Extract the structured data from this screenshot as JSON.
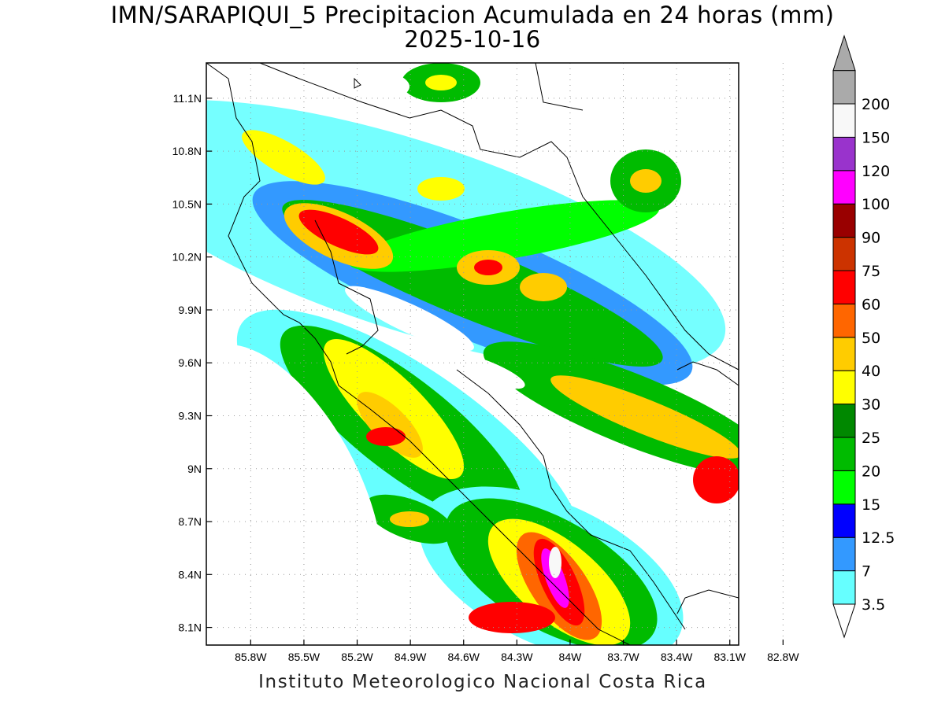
{
  "header": {
    "title": "IMN/SARAPIQUI_5 Precipitacion Acumulada en 24 horas (mm)",
    "date": "2025-10-16"
  },
  "footer": {
    "credit": "Instituto Meteorologico Nacional Costa Rica"
  },
  "map": {
    "lon_range": [
      -86.05,
      -83.05
    ],
    "lat_range": [
      8.0,
      11.3
    ],
    "lat_ticks": [
      {
        "value": 11.1,
        "label": "11.1N"
      },
      {
        "value": 10.8,
        "label": "10.8N"
      },
      {
        "value": 10.5,
        "label": "10.5N"
      },
      {
        "value": 10.2,
        "label": "10.2N"
      },
      {
        "value": 9.9,
        "label": "9.9N"
      },
      {
        "value": 9.6,
        "label": "9.6N"
      },
      {
        "value": 9.3,
        "label": "9.3N"
      },
      {
        "value": 9.0,
        "label": "9N"
      },
      {
        "value": 8.7,
        "label": "8.7N"
      },
      {
        "value": 8.4,
        "label": "8.4N"
      },
      {
        "value": 8.1,
        "label": "8.1N"
      }
    ],
    "lon_ticks": [
      {
        "value": -85.8,
        "label": "85.8W"
      },
      {
        "value": -85.5,
        "label": "85.5W"
      },
      {
        "value": -85.2,
        "label": "85.2W"
      },
      {
        "value": -84.9,
        "label": "84.9W"
      },
      {
        "value": -84.6,
        "label": "84.6W"
      },
      {
        "value": -84.3,
        "label": "84.3W"
      },
      {
        "value": -84.0,
        "label": "84W"
      },
      {
        "value": -83.7,
        "label": "83.7W"
      },
      {
        "value": -83.4,
        "label": "83.4W"
      },
      {
        "value": -83.1,
        "label": "83.1W"
      },
      {
        "value": -82.8,
        "label": "82.8W"
      }
    ],
    "grid": true
  },
  "legend": {
    "units": "mm",
    "classes": [
      {
        "label": "3.5",
        "color": "#66ffff"
      },
      {
        "label": "7",
        "color": "#3399ff"
      },
      {
        "label": "12.5",
        "color": "#0000ff"
      },
      {
        "label": "15",
        "color": "#00ff00"
      },
      {
        "label": "20",
        "color": "#00bb00"
      },
      {
        "label": "25",
        "color": "#008800"
      },
      {
        "label": "30",
        "color": "#ffff00"
      },
      {
        "label": "40",
        "color": "#ffcc00"
      },
      {
        "label": "50",
        "color": "#ff6600"
      },
      {
        "label": "60",
        "color": "#ff0000"
      },
      {
        "label": "75",
        "color": "#cc3300"
      },
      {
        "label": "90",
        "color": "#990000"
      },
      {
        "label": "100",
        "color": "#ff00ff"
      },
      {
        "label": "120",
        "color": "#9933cc"
      },
      {
        "label": "150",
        "color": "#f8f8f8"
      },
      {
        "label": "200",
        "color": "#aaaaaa"
      }
    ]
  }
}
